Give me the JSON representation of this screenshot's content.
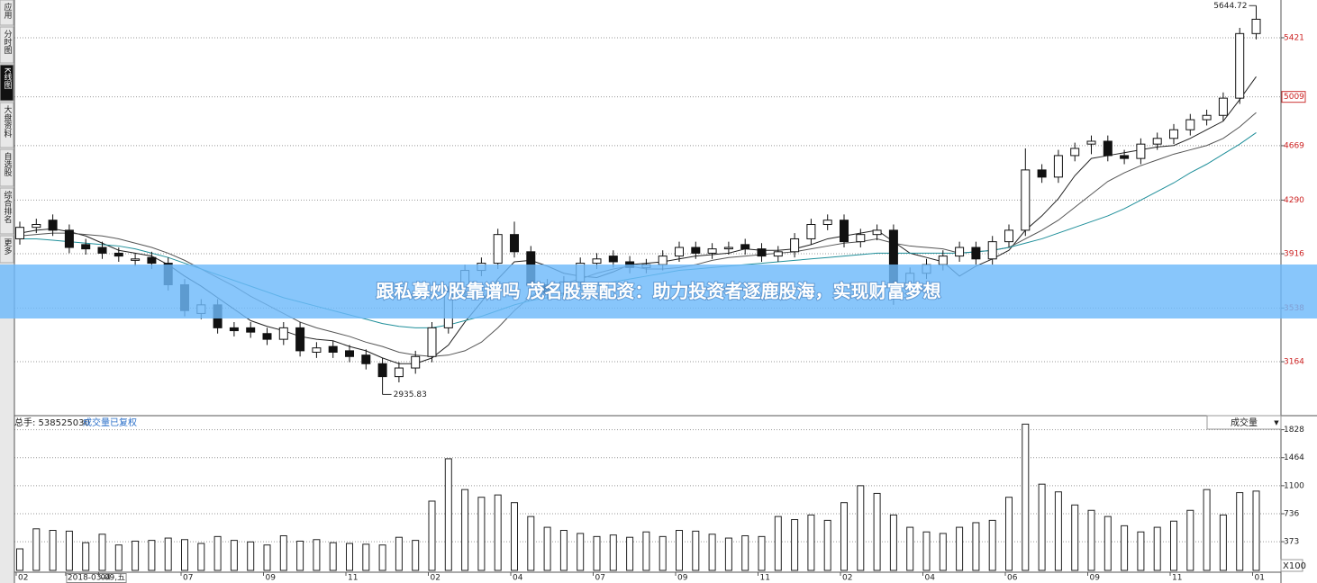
{
  "sidebar": [
    "应用",
    "分时图",
    "K线图",
    "大盘资料",
    "自选股",
    "综合排名",
    "更多"
  ],
  "banner": "跟私募炒股靠谱吗 茂名股票配资：助力投资者逐鹿股海，实现财富梦想",
  "chart_data": [
    {
      "type": "candlestick",
      "up_color": "#ffffff",
      "down_color": "#111111",
      "categories": [
        "02",
        null,
        null,
        "2018-03-09,五",
        null,
        "04",
        null,
        null,
        null,
        null,
        "07",
        null,
        null,
        null,
        null,
        "09",
        null,
        null,
        null,
        null,
        "11",
        null,
        null,
        null,
        null,
        "02",
        null,
        null,
        null,
        null,
        "04",
        null,
        null,
        null,
        null,
        "07",
        null,
        null,
        null,
        null,
        "09",
        null,
        null,
        null,
        null,
        "11",
        null,
        null,
        null,
        null,
        "02",
        null,
        null,
        null,
        null,
        "04",
        null,
        null,
        null,
        null,
        "06",
        null,
        null,
        null,
        null,
        "09",
        null,
        null,
        null,
        null,
        "11",
        null,
        null,
        null,
        null,
        "01"
      ],
      "open": [
        4020,
        4100,
        4150,
        4080,
        3980,
        3960,
        3920,
        3870,
        3890,
        3850,
        3700,
        3500,
        3560,
        3400,
        3400,
        3360,
        3320,
        3400,
        3230,
        3270,
        3240,
        3210,
        3150,
        3060,
        3120,
        3200,
        3400,
        3650,
        3800,
        3850,
        4050,
        3930,
        3700,
        3640,
        3720,
        3850,
        3900,
        3860,
        3820,
        3840,
        3900,
        3960,
        3920,
        3950,
        3980,
        3950,
        3900,
        3930,
        4020,
        4120,
        4150,
        4000,
        4050,
        4080,
        3700,
        3780,
        3840,
        3900,
        3960,
        3880,
        4000,
        4080,
        4500,
        4450,
        4600,
        4680,
        4700,
        4600,
        4580,
        4680,
        4720,
        4780,
        4850,
        4880,
        5000,
        5450
      ],
      "high": [
        4140,
        4160,
        4190,
        4120,
        4020,
        4000,
        3960,
        3920,
        3930,
        3890,
        3740,
        3600,
        3600,
        3440,
        3440,
        3400,
        3440,
        3440,
        3300,
        3310,
        3280,
        3250,
        3190,
        3160,
        3240,
        3440,
        3690,
        3840,
        3890,
        4090,
        4140,
        3970,
        3740,
        3760,
        3890,
        3920,
        3940,
        3900,
        3880,
        3940,
        4000,
        4000,
        3990,
        4000,
        4020,
        3990,
        3970,
        4060,
        4160,
        4190,
        4190,
        4090,
        4120,
        4120,
        3820,
        3880,
        3940,
        4000,
        4000,
        4040,
        4120,
        4650,
        4540,
        4640,
        4690,
        4740,
        4740,
        4640,
        4720,
        4760,
        4820,
        4890,
        4920,
        5040,
        5490,
        5644.72
      ],
      "low": [
        3980,
        4060,
        4040,
        3920,
        3910,
        3880,
        3860,
        3830,
        3810,
        3660,
        3480,
        3460,
        3360,
        3340,
        3330,
        3280,
        3280,
        3200,
        3190,
        3190,
        3160,
        3110,
        2935.83,
        3020,
        3080,
        3160,
        3360,
        3610,
        3760,
        3810,
        3890,
        3660,
        3600,
        3600,
        3680,
        3810,
        3820,
        3780,
        3780,
        3800,
        3860,
        3880,
        3880,
        3910,
        3910,
        3860,
        3860,
        3890,
        3980,
        4080,
        3960,
        3960,
        4010,
        3560,
        3660,
        3740,
        3800,
        3860,
        3840,
        3840,
        3960,
        4040,
        4410,
        4410,
        4560,
        4610,
        4560,
        4540,
        4540,
        4640,
        4680,
        4740,
        4810,
        4840,
        4960,
        5410
      ],
      "close": [
        4100,
        4120,
        4080,
        3960,
        3950,
        3920,
        3900,
        3880,
        3850,
        3700,
        3520,
        3560,
        3400,
        3380,
        3370,
        3320,
        3400,
        3240,
        3260,
        3230,
        3200,
        3150,
        3060,
        3120,
        3200,
        3400,
        3650,
        3800,
        3850,
        4050,
        3930,
        3700,
        3640,
        3720,
        3850,
        3880,
        3860,
        3820,
        3840,
        3900,
        3960,
        3920,
        3950,
        3960,
        3950,
        3900,
        3930,
        4020,
        4120,
        4150,
        4000,
        4050,
        4080,
        3700,
        3780,
        3840,
        3900,
        3960,
        3880,
        4000,
        4080,
        4500,
        4450,
        4600,
        4650,
        4700,
        4600,
        4580,
        4680,
        4720,
        4780,
        4850,
        4880,
        5000,
        5450,
        5550
      ],
      "lines": [
        {
          "color": "#222222",
          "values": [
            4060,
            4080,
            4090,
            4070,
            4040,
            3990,
            3940,
            3920,
            3900,
            3840,
            3760,
            3690,
            3610,
            3530,
            3450,
            3410,
            3380,
            3340,
            3320,
            3310,
            3270,
            3240,
            3190,
            3150,
            3150,
            3190,
            3280,
            3440,
            3580,
            3740,
            3860,
            3870,
            3830,
            3780,
            3760,
            3750,
            3790,
            3840,
            3850,
            3860,
            3880,
            3900,
            3910,
            3920,
            3950,
            3940,
            3940,
            3950,
            3980,
            4020,
            4040,
            4060,
            4080,
            4000,
            3920,
            3890,
            3860,
            3760,
            3830,
            3880,
            3940,
            4080,
            4180,
            4300,
            4460,
            4580,
            4600,
            4620,
            4640,
            4660,
            4670,
            4720,
            4780,
            4840,
            4990,
            5150
          ]
        },
        {
          "color": "#555555",
          "values": [
            4040,
            4050,
            4060,
            4060,
            4050,
            4040,
            4020,
            3990,
            3960,
            3920,
            3870,
            3810,
            3750,
            3690,
            3620,
            3560,
            3500,
            3440,
            3400,
            3370,
            3340,
            3300,
            3270,
            3230,
            3210,
            3200,
            3210,
            3240,
            3300,
            3400,
            3520,
            3620,
            3680,
            3710,
            3740,
            3780,
            3810,
            3830,
            3810,
            3810,
            3820,
            3840,
            3870,
            3890,
            3900,
            3910,
            3920,
            3930,
            3950,
            3970,
            3990,
            4000,
            4020,
            3990,
            3970,
            3960,
            3950,
            3920,
            3930,
            3940,
            3960,
            4020,
            4080,
            4150,
            4240,
            4330,
            4420,
            4480,
            4530,
            4570,
            4610,
            4640,
            4670,
            4720,
            4800,
            4900
          ]
        },
        {
          "color": "#1f8f9a",
          "values": [
            4020,
            4020,
            4010,
            4000,
            3990,
            3980,
            3970,
            3950,
            3920,
            3890,
            3850,
            3810,
            3770,
            3730,
            3690,
            3650,
            3610,
            3580,
            3550,
            3520,
            3490,
            3460,
            3430,
            3410,
            3400,
            3400,
            3420,
            3450,
            3480,
            3520,
            3560,
            3590,
            3610,
            3630,
            3660,
            3690,
            3720,
            3740,
            3760,
            3780,
            3800,
            3810,
            3820,
            3830,
            3840,
            3850,
            3860,
            3870,
            3880,
            3890,
            3900,
            3910,
            3920,
            3920,
            3920,
            3920,
            3920,
            3920,
            3930,
            3940,
            3960,
            3990,
            4020,
            4060,
            4100,
            4140,
            4180,
            4230,
            4290,
            4350,
            4410,
            4480,
            4540,
            4610,
            4680,
            4760
          ]
        }
      ],
      "ylim": [
        2788,
        5684
      ],
      "yticks": [
        3164,
        3538,
        3916,
        4290,
        4669,
        5009,
        5421
      ],
      "boxed_ytick": 5009,
      "grid": true
    },
    {
      "type": "bar",
      "header_total": "总手: 538525030",
      "header_note": "成交量已复权",
      "selector": "成交量",
      "unit_label": "X100",
      "color": "#ffffff",
      "values": [
        280,
        540,
        520,
        510,
        360,
        470,
        330,
        380,
        390,
        420,
        400,
        350,
        440,
        390,
        370,
        330,
        450,
        380,
        400,
        360,
        350,
        340,
        330,
        430,
        390,
        900,
        1450,
        1050,
        950,
        980,
        880,
        700,
        560,
        520,
        480,
        440,
        460,
        430,
        500,
        440,
        520,
        510,
        470,
        420,
        450,
        440,
        700,
        660,
        720,
        650,
        880,
        1100,
        1000,
        720,
        560,
        500,
        480,
        560,
        620,
        650,
        950,
        1900,
        1120,
        1020,
        850,
        780,
        700,
        580,
        500,
        560,
        640,
        780,
        1050,
        720,
        1010,
        1030
      ],
      "ylim": [
        0,
        2010
      ],
      "yticks": [
        373,
        736,
        1100,
        1464,
        1828
      ],
      "grid": true
    }
  ]
}
